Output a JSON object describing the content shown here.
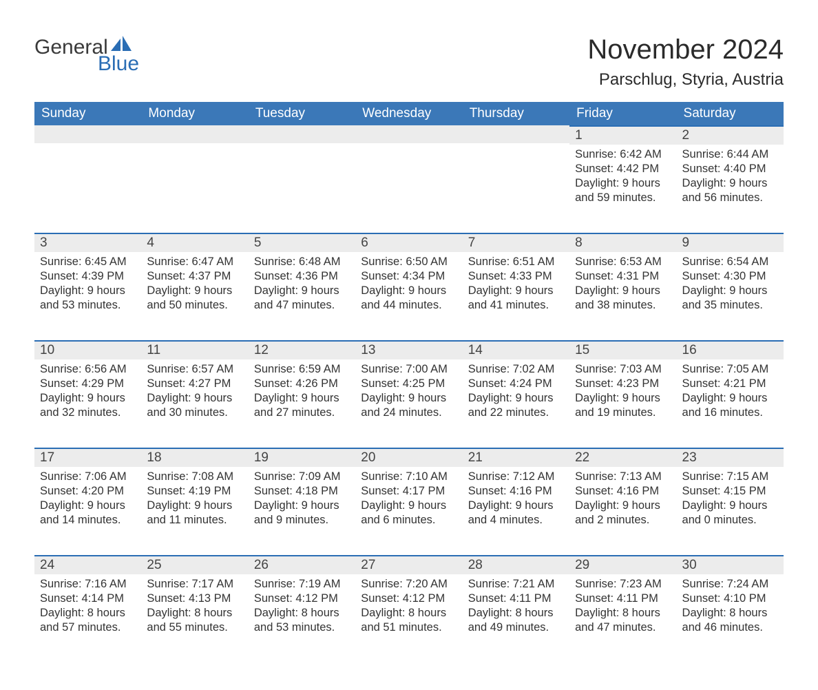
{
  "brand": {
    "word1": "General",
    "word2": "Blue",
    "sail_color": "#2a6db4",
    "text_color_dark": "#3a3a3a",
    "text_color_blue": "#2a6db4"
  },
  "title": "November 2024",
  "location": "Parschlug, Styria, Austria",
  "colors": {
    "header_bg": "#3b78b8",
    "header_text": "#ffffff",
    "daynum_bg": "#ececec",
    "daynum_border": "#2a6db4",
    "body_text": "#333333",
    "page_bg": "#ffffff"
  },
  "weekdays": [
    "Sunday",
    "Monday",
    "Tuesday",
    "Wednesday",
    "Thursday",
    "Friday",
    "Saturday"
  ],
  "weeks": [
    [
      null,
      null,
      null,
      null,
      null,
      {
        "n": "1",
        "sunrise": "6:42 AM",
        "sunset": "4:42 PM",
        "daylight": "9 hours and 59 minutes."
      },
      {
        "n": "2",
        "sunrise": "6:44 AM",
        "sunset": "4:40 PM",
        "daylight": "9 hours and 56 minutes."
      }
    ],
    [
      {
        "n": "3",
        "sunrise": "6:45 AM",
        "sunset": "4:39 PM",
        "daylight": "9 hours and 53 minutes."
      },
      {
        "n": "4",
        "sunrise": "6:47 AM",
        "sunset": "4:37 PM",
        "daylight": "9 hours and 50 minutes."
      },
      {
        "n": "5",
        "sunrise": "6:48 AM",
        "sunset": "4:36 PM",
        "daylight": "9 hours and 47 minutes."
      },
      {
        "n": "6",
        "sunrise": "6:50 AM",
        "sunset": "4:34 PM",
        "daylight": "9 hours and 44 minutes."
      },
      {
        "n": "7",
        "sunrise": "6:51 AM",
        "sunset": "4:33 PM",
        "daylight": "9 hours and 41 minutes."
      },
      {
        "n": "8",
        "sunrise": "6:53 AM",
        "sunset": "4:31 PM",
        "daylight": "9 hours and 38 minutes."
      },
      {
        "n": "9",
        "sunrise": "6:54 AM",
        "sunset": "4:30 PM",
        "daylight": "9 hours and 35 minutes."
      }
    ],
    [
      {
        "n": "10",
        "sunrise": "6:56 AM",
        "sunset": "4:29 PM",
        "daylight": "9 hours and 32 minutes."
      },
      {
        "n": "11",
        "sunrise": "6:57 AM",
        "sunset": "4:27 PM",
        "daylight": "9 hours and 30 minutes."
      },
      {
        "n": "12",
        "sunrise": "6:59 AM",
        "sunset": "4:26 PM",
        "daylight": "9 hours and 27 minutes."
      },
      {
        "n": "13",
        "sunrise": "7:00 AM",
        "sunset": "4:25 PM",
        "daylight": "9 hours and 24 minutes."
      },
      {
        "n": "14",
        "sunrise": "7:02 AM",
        "sunset": "4:24 PM",
        "daylight": "9 hours and 22 minutes."
      },
      {
        "n": "15",
        "sunrise": "7:03 AM",
        "sunset": "4:23 PM",
        "daylight": "9 hours and 19 minutes."
      },
      {
        "n": "16",
        "sunrise": "7:05 AM",
        "sunset": "4:21 PM",
        "daylight": "9 hours and 16 minutes."
      }
    ],
    [
      {
        "n": "17",
        "sunrise": "7:06 AM",
        "sunset": "4:20 PM",
        "daylight": "9 hours and 14 minutes."
      },
      {
        "n": "18",
        "sunrise": "7:08 AM",
        "sunset": "4:19 PM",
        "daylight": "9 hours and 11 minutes."
      },
      {
        "n": "19",
        "sunrise": "7:09 AM",
        "sunset": "4:18 PM",
        "daylight": "9 hours and 9 minutes."
      },
      {
        "n": "20",
        "sunrise": "7:10 AM",
        "sunset": "4:17 PM",
        "daylight": "9 hours and 6 minutes."
      },
      {
        "n": "21",
        "sunrise": "7:12 AM",
        "sunset": "4:16 PM",
        "daylight": "9 hours and 4 minutes."
      },
      {
        "n": "22",
        "sunrise": "7:13 AM",
        "sunset": "4:16 PM",
        "daylight": "9 hours and 2 minutes."
      },
      {
        "n": "23",
        "sunrise": "7:15 AM",
        "sunset": "4:15 PM",
        "daylight": "9 hours and 0 minutes."
      }
    ],
    [
      {
        "n": "24",
        "sunrise": "7:16 AM",
        "sunset": "4:14 PM",
        "daylight": "8 hours and 57 minutes."
      },
      {
        "n": "25",
        "sunrise": "7:17 AM",
        "sunset": "4:13 PM",
        "daylight": "8 hours and 55 minutes."
      },
      {
        "n": "26",
        "sunrise": "7:19 AM",
        "sunset": "4:12 PM",
        "daylight": "8 hours and 53 minutes."
      },
      {
        "n": "27",
        "sunrise": "7:20 AM",
        "sunset": "4:12 PM",
        "daylight": "8 hours and 51 minutes."
      },
      {
        "n": "28",
        "sunrise": "7:21 AM",
        "sunset": "4:11 PM",
        "daylight": "8 hours and 49 minutes."
      },
      {
        "n": "29",
        "sunrise": "7:23 AM",
        "sunset": "4:11 PM",
        "daylight": "8 hours and 47 minutes."
      },
      {
        "n": "30",
        "sunrise": "7:24 AM",
        "sunset": "4:10 PM",
        "daylight": "8 hours and 46 minutes."
      }
    ]
  ],
  "labels": {
    "sunrise": "Sunrise: ",
    "sunset": "Sunset: ",
    "daylight": "Daylight: "
  }
}
